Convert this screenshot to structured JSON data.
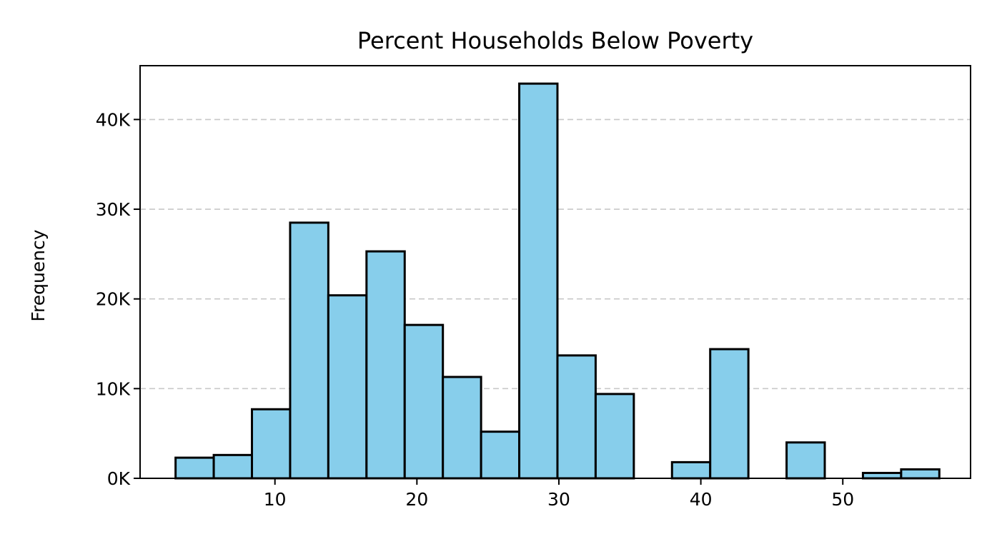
{
  "chart_data": {
    "type": "bar",
    "title": "Percent Households Below Poverty",
    "xlabel": "",
    "ylabel": "Frequency",
    "bar_color": "#87CEEB",
    "edge_color": "#000000",
    "bin_start": 3.0,
    "bin_width": 2.69,
    "counts": [
      2300,
      2600,
      7700,
      28500,
      20400,
      25300,
      17100,
      11300,
      5200,
      44000,
      13700,
      9400,
      0,
      1800,
      14400,
      0,
      4000,
      0,
      600,
      1000
    ],
    "xlim": [
      0.5,
      59
    ],
    "ylim": [
      0,
      46000
    ],
    "x_ticks": [
      10,
      20,
      30,
      40,
      50
    ],
    "x_tick_labels": [
      "10",
      "20",
      "30",
      "40",
      "50"
    ],
    "y_ticks": [
      0,
      10000,
      20000,
      30000,
      40000
    ],
    "y_tick_labels": [
      "0K",
      "10K",
      "20K",
      "30K",
      "40K"
    ],
    "grid": "y-dashed",
    "legend": "none"
  }
}
